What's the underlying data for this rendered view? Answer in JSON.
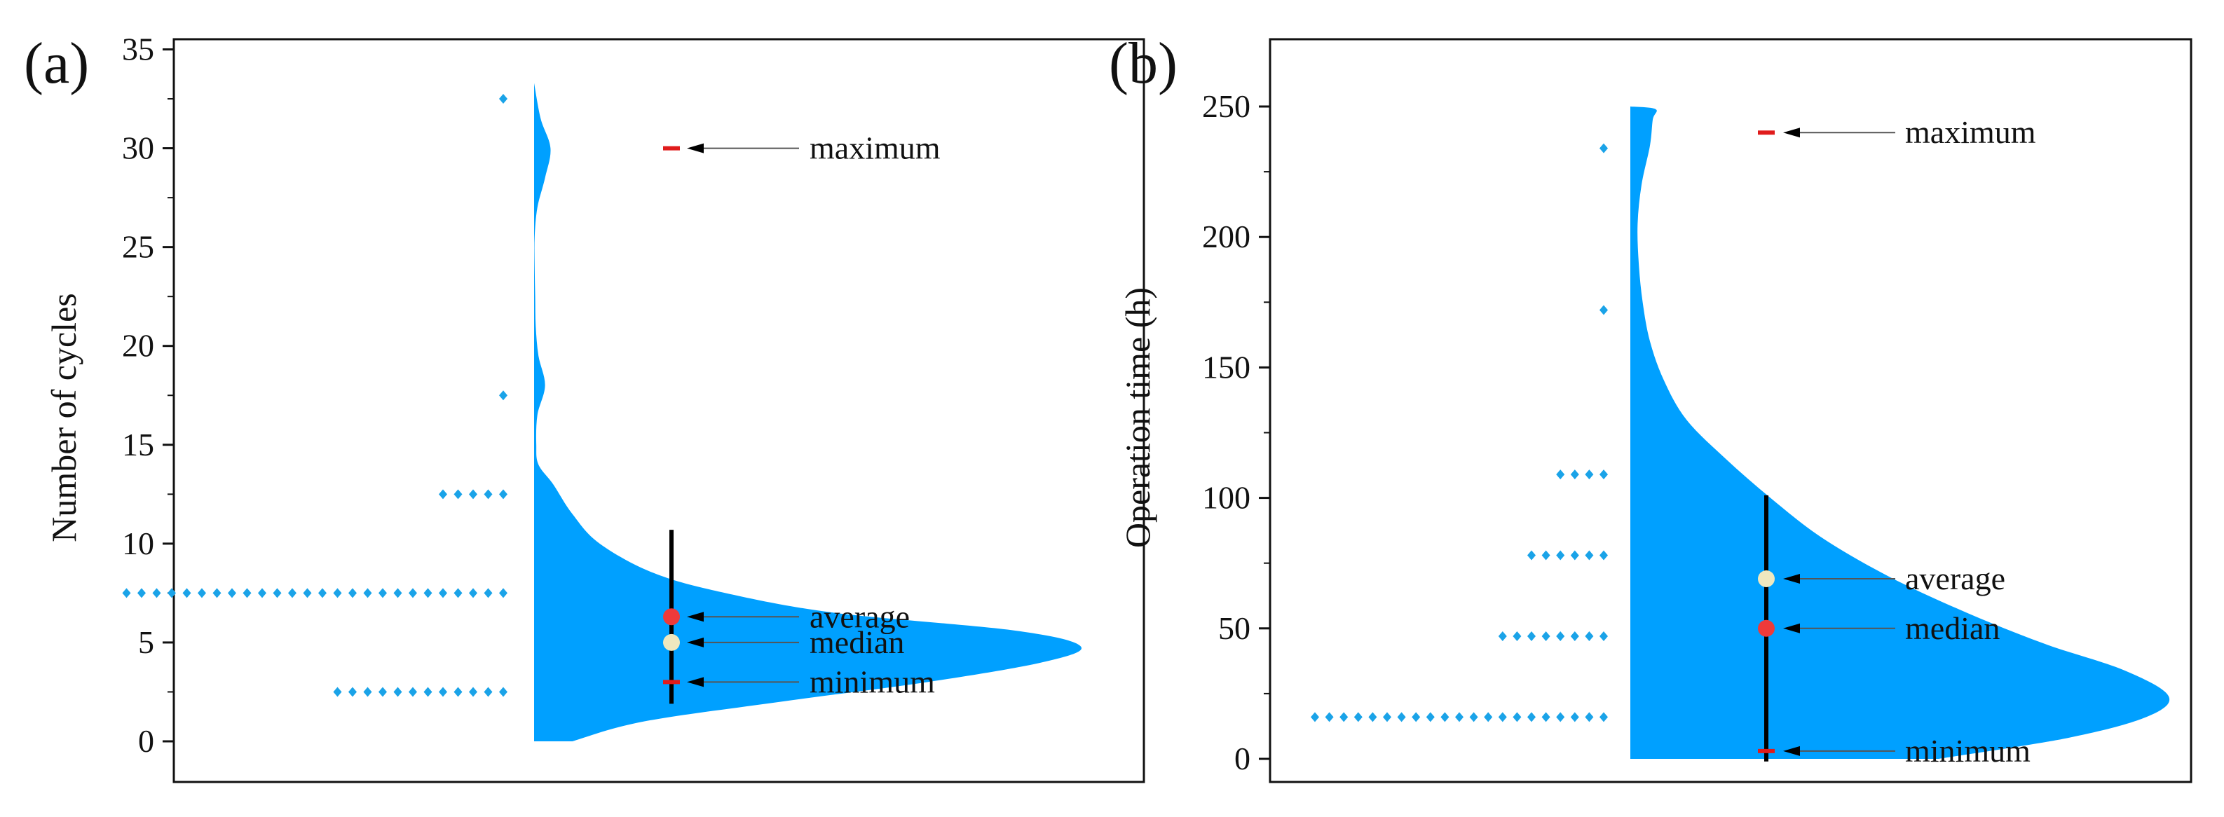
{
  "chart_data": [
    {
      "type": "half-violin with dot strip",
      "panel_label": "(a)",
      "ylabel": "Number of cycles",
      "xlabel": "",
      "ylim": [
        -1,
        36
      ],
      "yticks": [
        0,
        5,
        10,
        15,
        20,
        25,
        30,
        35
      ],
      "grid": false,
      "density_profile": [
        {
          "y": 0,
          "w": 0.07
        },
        {
          "y": 1,
          "w": 0.2
        },
        {
          "y": 2,
          "w": 0.45
        },
        {
          "y": 3,
          "w": 0.72
        },
        {
          "y": 4,
          "w": 0.93
        },
        {
          "y": 4.8,
          "w": 1.0
        },
        {
          "y": 5.6,
          "w": 0.88
        },
        {
          "y": 6.5,
          "w": 0.55
        },
        {
          "y": 7.5,
          "w": 0.35
        },
        {
          "y": 8.5,
          "w": 0.22
        },
        {
          "y": 10,
          "w": 0.12
        },
        {
          "y": 11.5,
          "w": 0.07
        },
        {
          "y": 13,
          "w": 0.035
        },
        {
          "y": 14,
          "w": 0.008
        },
        {
          "y": 15,
          "w": 0.004
        },
        {
          "y": 16.5,
          "w": 0.006
        },
        {
          "y": 18,
          "w": 0.02
        },
        {
          "y": 19.5,
          "w": 0.008
        },
        {
          "y": 21,
          "w": 0.003
        },
        {
          "y": 22.5,
          "w": 0.002
        },
        {
          "y": 24,
          "w": 0.001
        },
        {
          "y": 25.5,
          "w": 0.001
        },
        {
          "y": 27,
          "w": 0.006
        },
        {
          "y": 28.5,
          "w": 0.02
        },
        {
          "y": 30,
          "w": 0.03
        },
        {
          "y": 31.5,
          "w": 0.012
        },
        {
          "y": 33.3,
          "w": 0.0
        }
      ],
      "dot_rows": [
        {
          "y": 2.5,
          "count": 12
        },
        {
          "y": 7.5,
          "count": 26
        },
        {
          "y": 12.5,
          "count": 5
        },
        {
          "y": 17.5,
          "count": 1
        },
        {
          "y": 32.5,
          "count": 1
        }
      ],
      "whisker": [
        1.9,
        10.7
      ],
      "stats": {
        "maximum": 30,
        "average": 6.3,
        "median": 5,
        "minimum": 3
      },
      "annotations": {
        "maximum": "maximum",
        "average": "average",
        "median": "median",
        "minimum": "minimum"
      },
      "colors": {
        "violin": "#00a0ff",
        "dots": "#1aa3e8",
        "average_marker": "#ee3a3a",
        "median_marker": "#efe8bf",
        "min_max_marker": "#e01b1b",
        "whisker": "#000000"
      }
    },
    {
      "type": "half-violin with dot strip",
      "panel_label": "(b)",
      "ylabel": "Operation time (h)",
      "xlabel": "",
      "ylim": [
        -10,
        275
      ],
      "yticks": [
        0,
        50,
        100,
        150,
        200,
        250
      ],
      "grid": false,
      "density_profile": [
        {
          "y": 0,
          "w": 0.55
        },
        {
          "y": 8,
          "w": 0.78
        },
        {
          "y": 16,
          "w": 0.92
        },
        {
          "y": 24,
          "w": 0.96
        },
        {
          "y": 34,
          "w": 0.88
        },
        {
          "y": 44,
          "w": 0.74
        },
        {
          "y": 56,
          "w": 0.6
        },
        {
          "y": 70,
          "w": 0.46
        },
        {
          "y": 85,
          "w": 0.34
        },
        {
          "y": 100,
          "w": 0.25
        },
        {
          "y": 115,
          "w": 0.17
        },
        {
          "y": 130,
          "w": 0.1
        },
        {
          "y": 145,
          "w": 0.06
        },
        {
          "y": 160,
          "w": 0.035
        },
        {
          "y": 175,
          "w": 0.022
        },
        {
          "y": 190,
          "w": 0.015
        },
        {
          "y": 205,
          "w": 0.013
        },
        {
          "y": 220,
          "w": 0.02
        },
        {
          "y": 235,
          "w": 0.035
        },
        {
          "y": 245,
          "w": 0.04
        },
        {
          "y": 249,
          "w": 0.045
        },
        {
          "y": 250,
          "w": 0.0
        }
      ],
      "dot_rows": [
        {
          "y": 16,
          "count": 21
        },
        {
          "y": 47,
          "count": 8
        },
        {
          "y": 78,
          "count": 6
        },
        {
          "y": 109,
          "count": 4
        },
        {
          "y": 172,
          "count": 1
        },
        {
          "y": 234,
          "count": 1
        }
      ],
      "whisker": [
        -1,
        101
      ],
      "stats": {
        "maximum": 240,
        "average": 69,
        "median": 50,
        "minimum": 3
      },
      "annotations": {
        "maximum": "maximum",
        "average": "average",
        "median": "median",
        "minimum": "minimum"
      },
      "colors": {
        "violin": "#00a0ff",
        "dots": "#1aa3e8",
        "average_marker": "#efe8bf",
        "median_marker": "#ee3a3a",
        "min_max_marker": "#e01b1b",
        "whisker": "#000000"
      }
    }
  ]
}
